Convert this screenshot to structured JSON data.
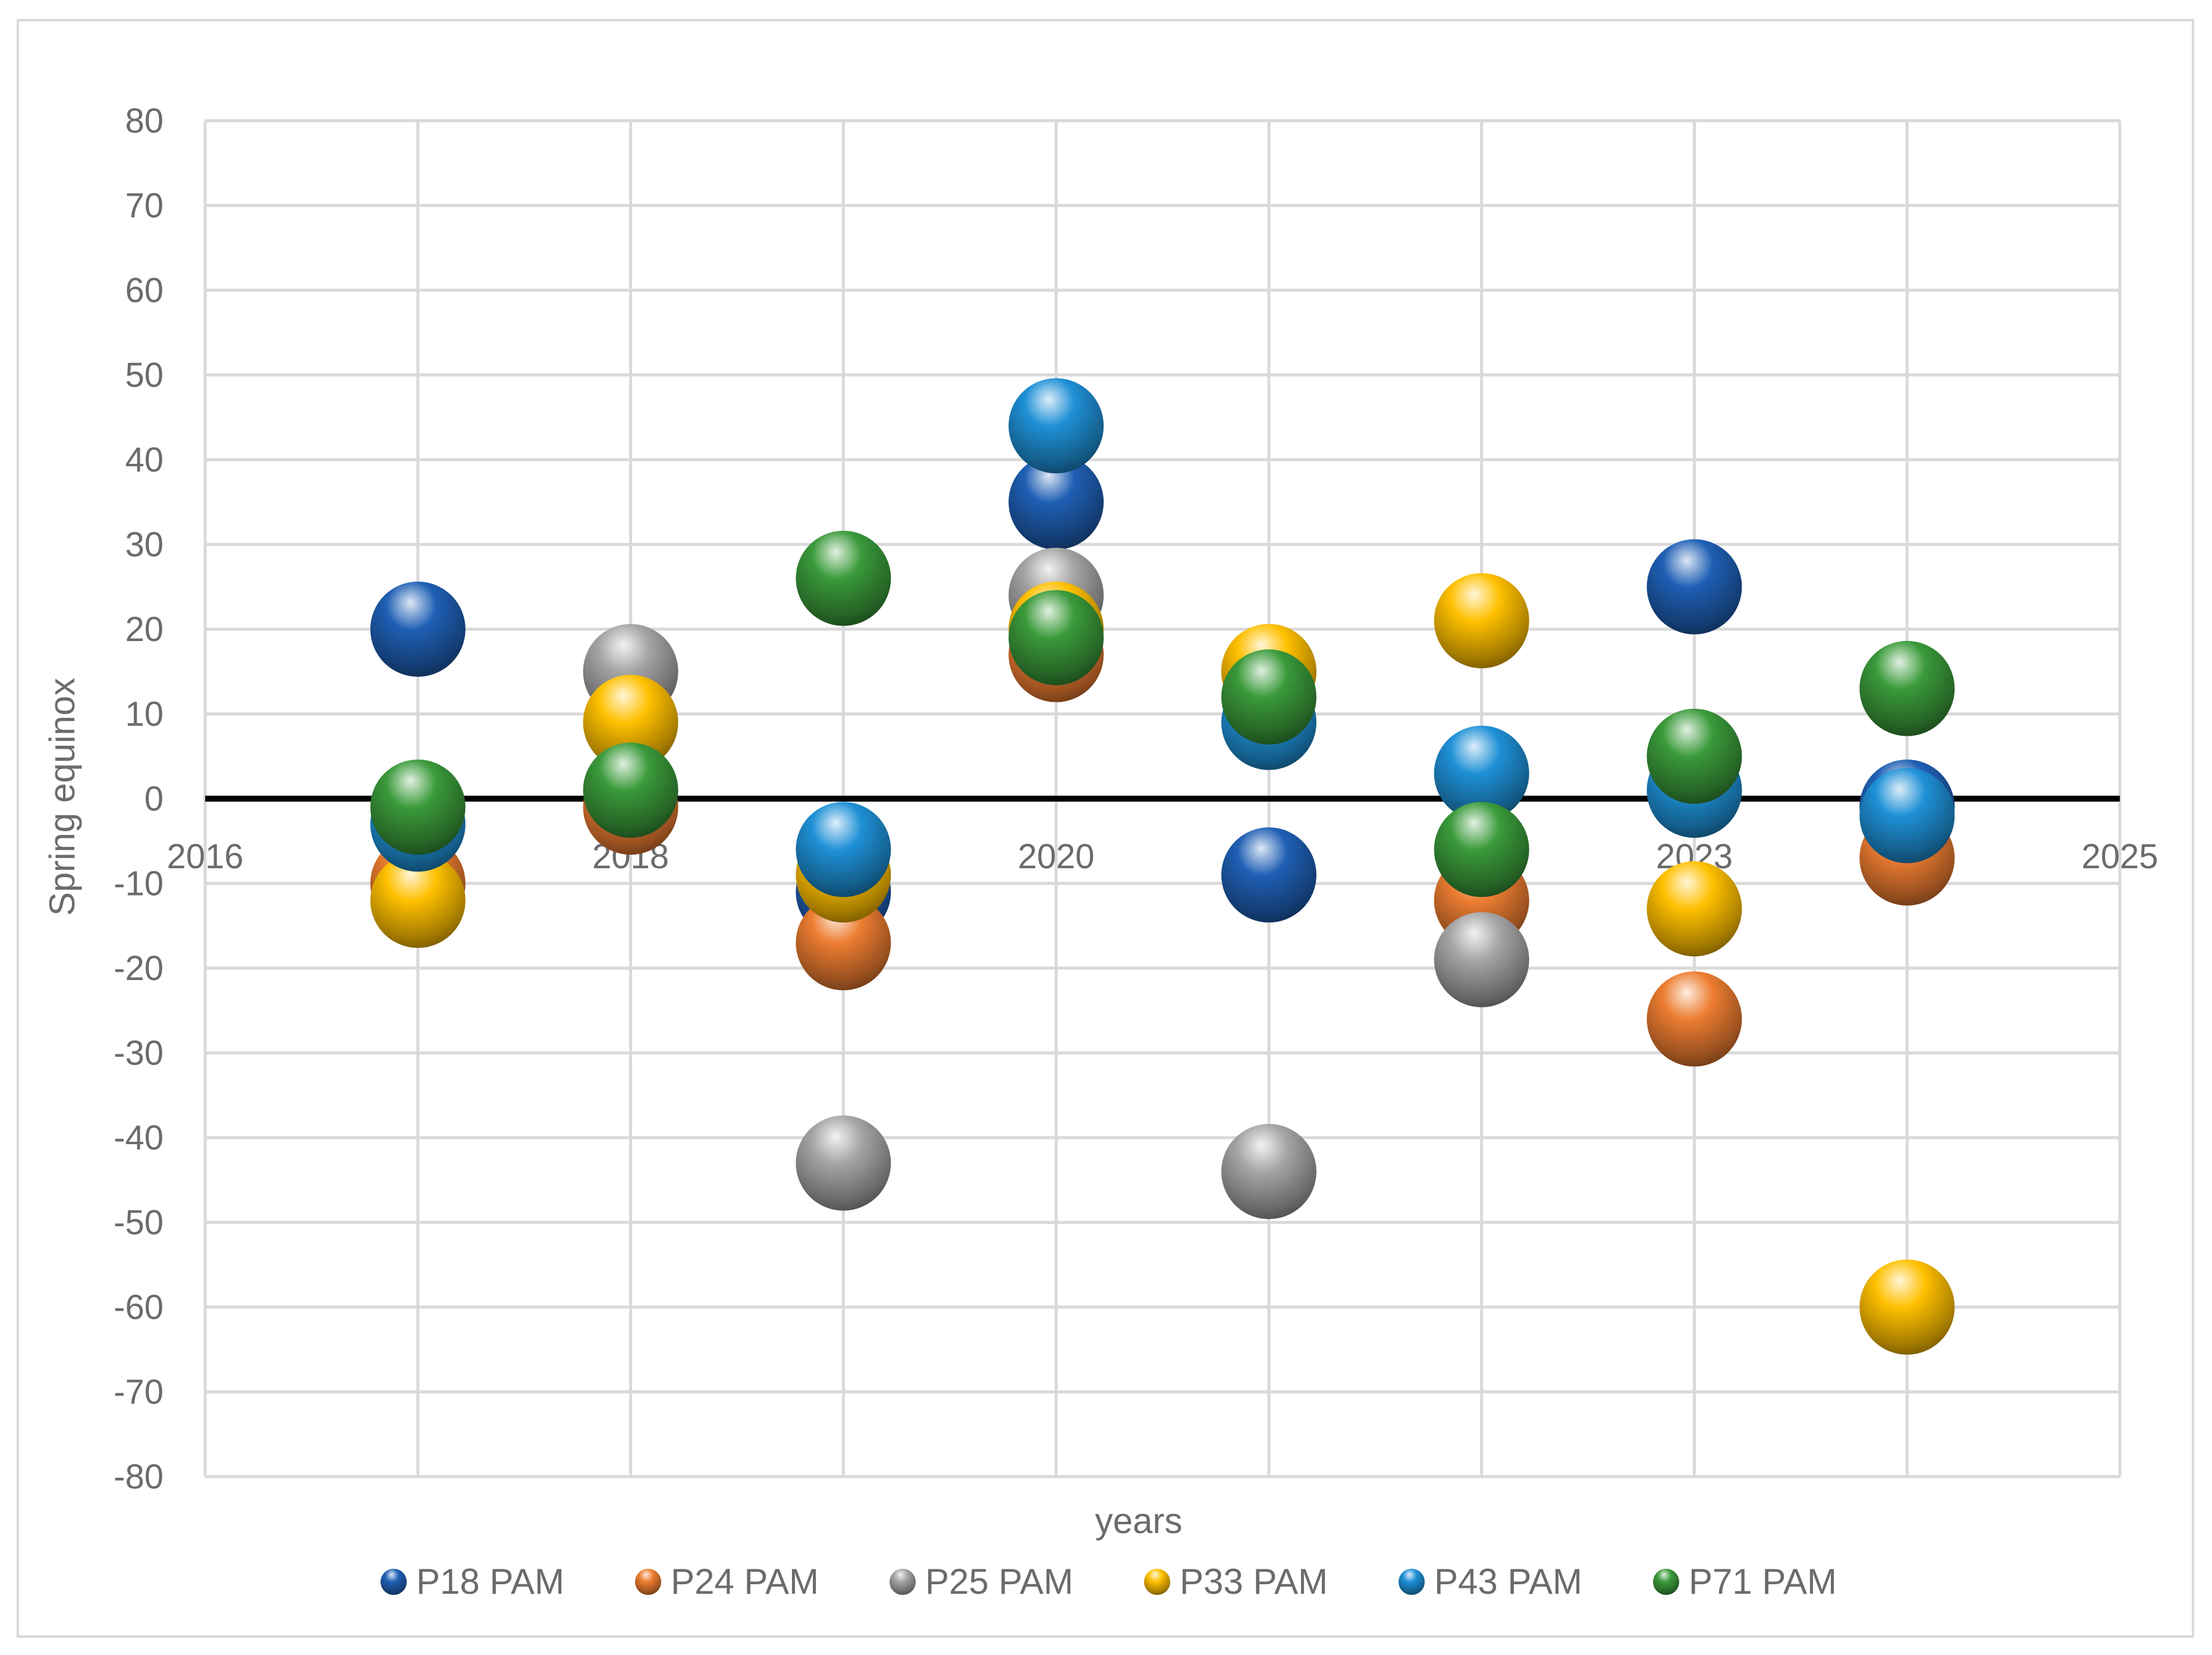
{
  "chart_data": {
    "type": "scatter",
    "title": "",
    "xlabel": "years",
    "ylabel": "Spring equinox",
    "xlim": [
      2016,
      2025
    ],
    "ylim": [
      -80,
      80
    ],
    "x_ticks": [
      2016,
      2017,
      2018,
      2019,
      2020,
      2021,
      2022,
      2023,
      2024,
      2025
    ],
    "y_ticks": [
      80,
      70,
      60,
      50,
      40,
      30,
      20,
      10,
      0,
      -10,
      -20,
      -30,
      -40,
      -50,
      -60,
      -70,
      -80
    ],
    "x_tick_labels_at": "zero line",
    "grid": true,
    "legend_position": "bottom",
    "marker_style": "3d-sphere",
    "series": [
      {
        "name": "P18 PAM",
        "color": "#1f5fb4",
        "points": [
          [
            2017,
            20
          ],
          [
            2019,
            -11
          ],
          [
            2020,
            35
          ],
          [
            2021,
            -9
          ],
          [
            2023,
            25
          ],
          [
            2024,
            -1
          ]
        ]
      },
      {
        "name": "P24 PAM",
        "color": "#ed7d31",
        "points": [
          [
            2017,
            -10
          ],
          [
            2018,
            -1
          ],
          [
            2019,
            -17
          ],
          [
            2020,
            17
          ],
          [
            2021,
            15
          ],
          [
            2022,
            -12
          ],
          [
            2023,
            -26
          ],
          [
            2024,
            -7
          ]
        ]
      },
      {
        "name": "P25 PAM",
        "color": "#a5a5a5",
        "points": [
          [
            2018,
            15
          ],
          [
            2019,
            -43
          ],
          [
            2020,
            24
          ],
          [
            2021,
            -44
          ],
          [
            2022,
            -19
          ],
          [
            2023,
            1
          ]
        ]
      },
      {
        "name": "P33 PAM",
        "color": "#ffc000",
        "points": [
          [
            2017,
            -12
          ],
          [
            2018,
            9
          ],
          [
            2019,
            -9
          ],
          [
            2020,
            20
          ],
          [
            2021,
            15
          ],
          [
            2022,
            21
          ],
          [
            2023,
            -13
          ],
          [
            2024,
            -60
          ]
        ]
      },
      {
        "name": "P43 PAM",
        "color": "#1e90d6",
        "points": [
          [
            2017,
            -3
          ],
          [
            2019,
            -6
          ],
          [
            2020,
            44
          ],
          [
            2021,
            9
          ],
          [
            2022,
            3
          ],
          [
            2023,
            1
          ],
          [
            2024,
            -2
          ]
        ]
      },
      {
        "name": "P71 PAM",
        "color": "#3a9a3a",
        "points": [
          [
            2017,
            -1
          ],
          [
            2018,
            1
          ],
          [
            2019,
            26
          ],
          [
            2020,
            19
          ],
          [
            2021,
            12
          ],
          [
            2022,
            -6
          ],
          [
            2023,
            5
          ],
          [
            2024,
            13
          ]
        ]
      }
    ]
  }
}
